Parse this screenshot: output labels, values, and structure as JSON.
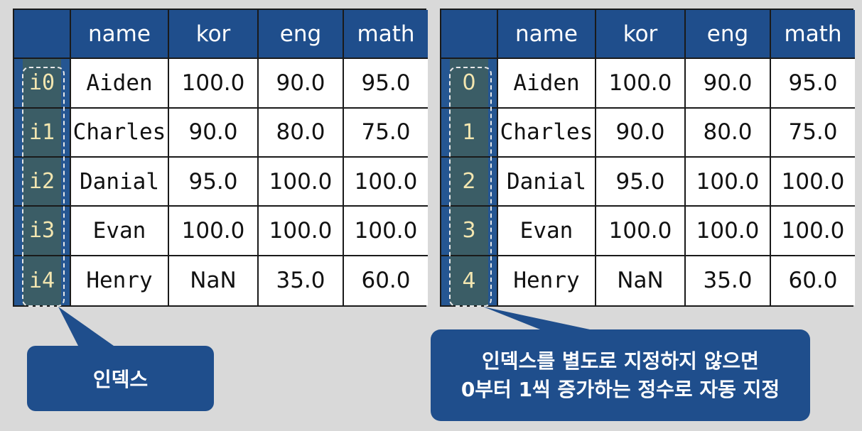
{
  "columns": [
    "name",
    "kor",
    "eng",
    "math"
  ],
  "rows": [
    {
      "name": "Aiden",
      "kor": "100.0",
      "eng": "90.0",
      "math": "95.0"
    },
    {
      "name": "Charles",
      "kor": "90.0",
      "eng": "80.0",
      "math": "75.0"
    },
    {
      "name": "Danial",
      "kor": "95.0",
      "eng": "100.0",
      "math": "100.0"
    },
    {
      "name": "Evan",
      "kor": "100.0",
      "eng": "100.0",
      "math": "100.0"
    },
    {
      "name": "Henry",
      "kor": "NaN",
      "eng": "35.0",
      "math": "60.0"
    }
  ],
  "left_index": [
    "i0",
    "i1",
    "i2",
    "i3",
    "i4"
  ],
  "right_index": [
    "0",
    "1",
    "2",
    "3",
    "4"
  ],
  "callouts": {
    "left": "인덱스",
    "right_line1": "인덱스를 별도로 지정하지 않으면",
    "right_line2": "0부터 1씩 증가하는 정수로 자동 지정"
  },
  "colors": {
    "header_bg": "#1f4e8c",
    "index_bg": "#3b5d66",
    "index_text": "#f3e6b0",
    "callout_bg": "#1f4e8c",
    "background": "#d9d9d9"
  }
}
